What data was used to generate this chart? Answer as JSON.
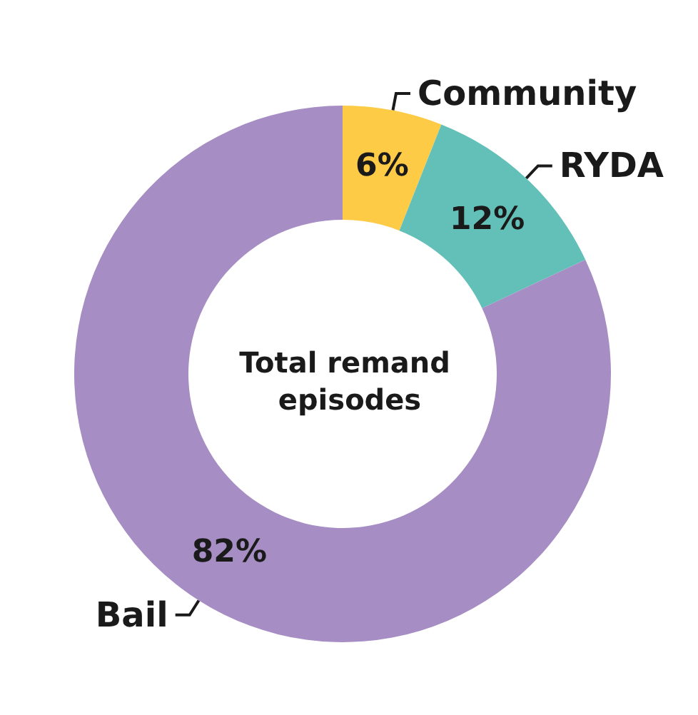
{
  "chart_data": {
    "type": "donut",
    "title": "Total remand episodes",
    "categories": [
      "Community",
      "RYDA",
      "Bail"
    ],
    "values": [
      6,
      12,
      82
    ],
    "colors": [
      "#fecb47",
      "#63c0b8",
      "#a68dc4"
    ],
    "value_labels": [
      "6%",
      "12%",
      "82%"
    ],
    "legend": false
  }
}
